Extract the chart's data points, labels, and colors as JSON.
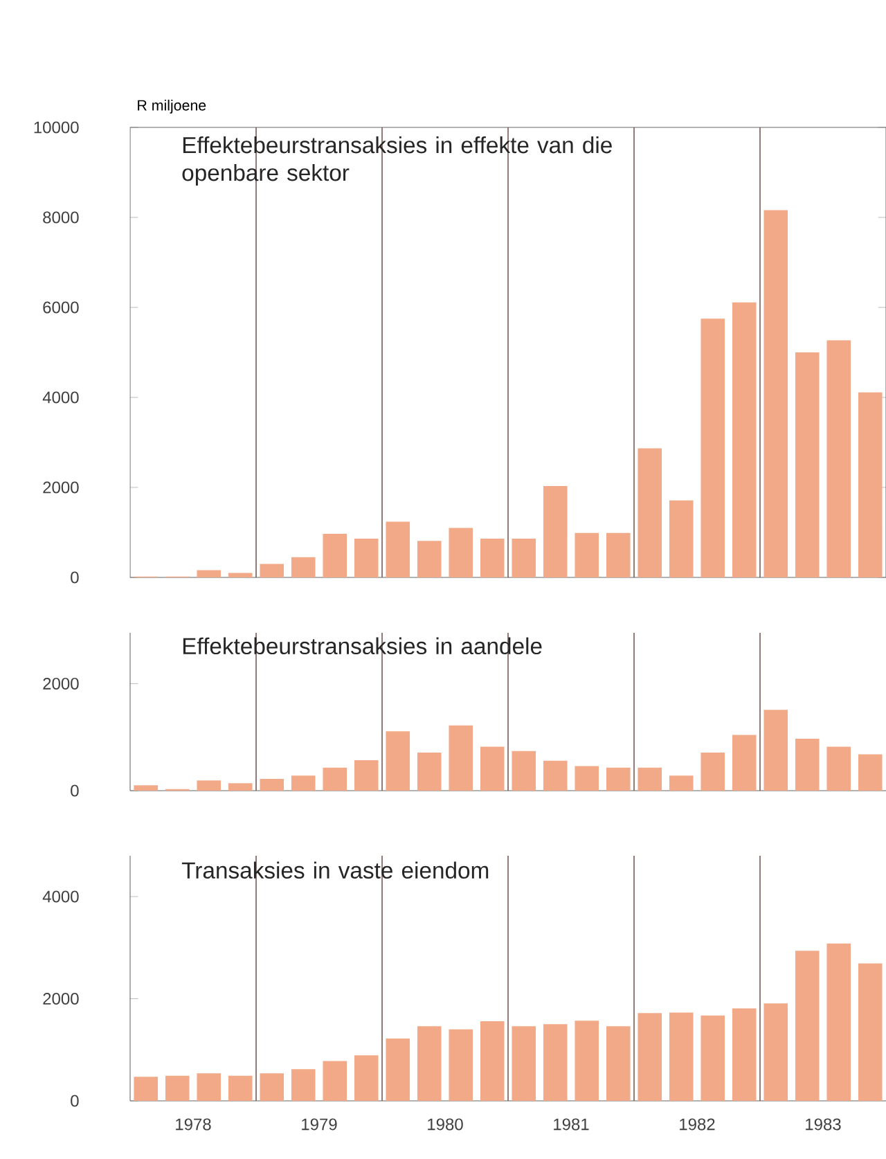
{
  "chart_data": [
    {
      "type": "bar",
      "title": "Effektebeurstransaksies in effekte van die openbare sektor",
      "ylabel": "R miljoene",
      "x": [
        1978.125,
        1978.375,
        1978.625,
        1978.875,
        1979.125,
        1979.375,
        1979.625,
        1979.875,
        1980.125,
        1980.375,
        1980.625,
        1980.875,
        1981.125,
        1981.375,
        1981.625,
        1981.875,
        1982.125,
        1982.375,
        1982.625,
        1982.875,
        1983.125,
        1983.375,
        1983.625,
        1983.875
      ],
      "values": [
        20,
        20,
        160,
        100,
        300,
        450,
        970,
        860,
        1240,
        810,
        1100,
        860,
        860,
        2030,
        990,
        990,
        2870,
        1710,
        5750,
        6110,
        8160,
        5000,
        5270,
        4110
      ],
      "color": "#f2a987",
      "xlim": [
        1978,
        1984
      ],
      "ylim": [
        0,
        10000
      ],
      "yticks": [
        0,
        2000,
        4000,
        6000,
        8000,
        10000
      ],
      "tick_labels": "y",
      "ref_lines": [
        {
          "axis": "x",
          "value": 1979,
          "color": "#7a5a55"
        },
        {
          "axis": "x",
          "value": 1980,
          "color": "#7a5a55"
        },
        {
          "axis": "x",
          "value": 1981,
          "color": "#7a5a55"
        },
        {
          "axis": "x",
          "value": 1982,
          "color": "#7a5a55"
        },
        {
          "axis": "x",
          "value": 1983,
          "color": "#7a5a55"
        }
      ]
    },
    {
      "type": "bar",
      "title": "Effektebeurstransaksies in aandele",
      "x": [
        1978.125,
        1978.375,
        1978.625,
        1978.875,
        1979.125,
        1979.375,
        1979.625,
        1979.875,
        1980.125,
        1980.375,
        1980.625,
        1980.875,
        1981.125,
        1981.375,
        1981.625,
        1981.875,
        1982.125,
        1982.375,
        1982.625,
        1982.875,
        1983.125,
        1983.375,
        1983.625,
        1983.875
      ],
      "values": [
        100,
        30,
        190,
        140,
        220,
        280,
        430,
        570,
        1110,
        710,
        1220,
        820,
        740,
        560,
        460,
        430,
        430,
        280,
        710,
        1040,
        1510,
        970,
        820,
        680
      ],
      "color": "#f2a987",
      "xlim": [
        1978,
        1984
      ],
      "ylim": [
        0,
        2950
      ],
      "yticks": [
        0,
        2000
      ],
      "tick_labels": "y",
      "ref_lines": [
        {
          "axis": "x",
          "value": 1979,
          "color": "#7a5a55"
        },
        {
          "axis": "x",
          "value": 1980,
          "color": "#7a5a55"
        },
        {
          "axis": "x",
          "value": 1981,
          "color": "#7a5a55"
        },
        {
          "axis": "x",
          "value": 1982,
          "color": "#7a5a55"
        },
        {
          "axis": "x",
          "value": 1983,
          "color": "#7a5a55"
        }
      ]
    },
    {
      "type": "bar",
      "title": "Transaksies in vaste eiendom",
      "x": [
        1978.125,
        1978.375,
        1978.625,
        1978.875,
        1979.125,
        1979.375,
        1979.625,
        1979.875,
        1980.125,
        1980.375,
        1980.625,
        1980.875,
        1981.125,
        1981.375,
        1981.625,
        1981.875,
        1982.125,
        1982.375,
        1982.625,
        1982.875,
        1983.125,
        1983.375,
        1983.625,
        1983.875
      ],
      "values": [
        470,
        490,
        540,
        490,
        540,
        620,
        780,
        890,
        1220,
        1460,
        1400,
        1560,
        1460,
        1500,
        1570,
        1460,
        1720,
        1730,
        1670,
        1810,
        1910,
        2940,
        3080,
        2690
      ],
      "color": "#f2a987",
      "xlim": [
        1978,
        1984
      ],
      "ylim": [
        0,
        4800
      ],
      "yticks": [
        0,
        2000,
        4000
      ],
      "xticks": [
        {
          "value": 1978.5,
          "label": "1978"
        },
        {
          "value": 1979.5,
          "label": "1979"
        },
        {
          "value": 1980.5,
          "label": "1980"
        },
        {
          "value": 1981.5,
          "label": "1981"
        },
        {
          "value": 1982.5,
          "label": "1982"
        },
        {
          "value": 1983.5,
          "label": "1983"
        }
      ],
      "ref_lines": [
        {
          "axis": "x",
          "value": 1979,
          "color": "#7a5a55"
        },
        {
          "axis": "x",
          "value": 1980,
          "color": "#7a5a55"
        },
        {
          "axis": "x",
          "value": 1981,
          "color": "#7a5a55"
        },
        {
          "axis": "x",
          "value": 1982,
          "color": "#7a5a55"
        },
        {
          "axis": "x",
          "value": 1983,
          "color": "#7a5a55"
        }
      ]
    }
  ]
}
